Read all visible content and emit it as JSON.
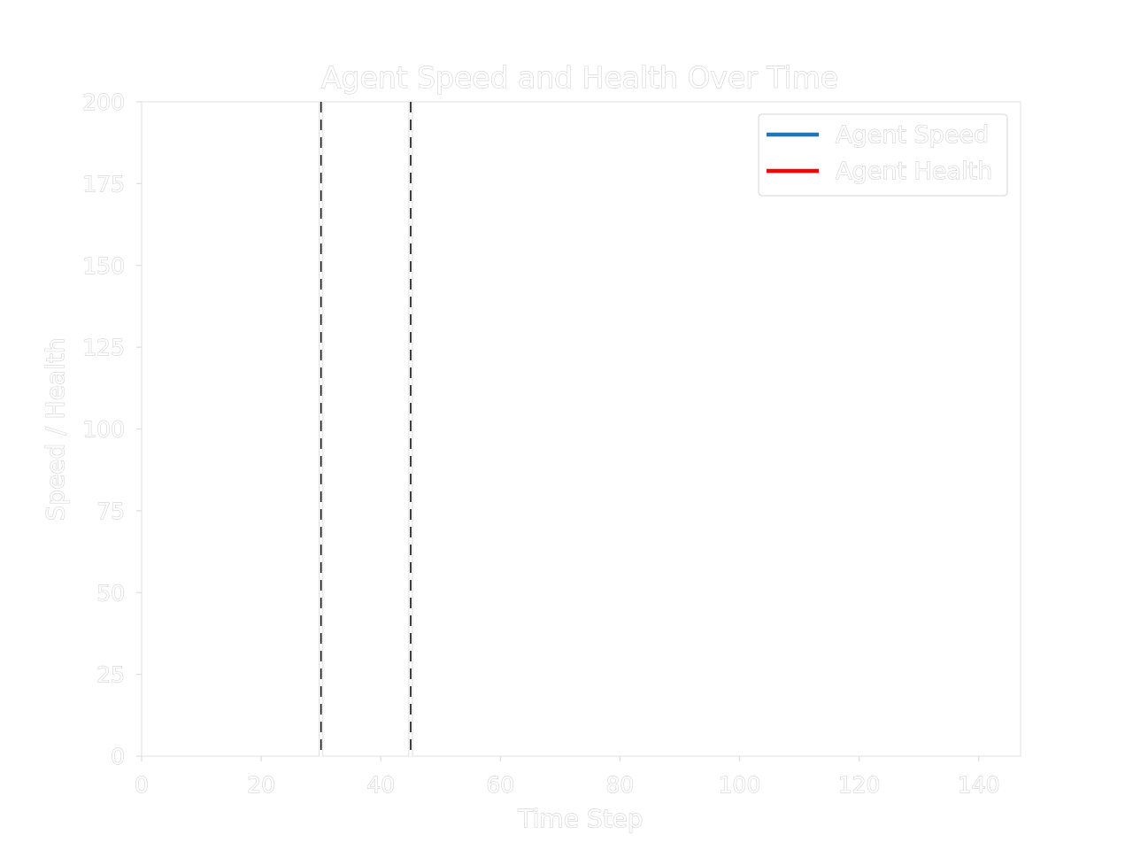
{
  "chart_data": {
    "type": "line",
    "title": "Agent Speed and Health Over Time",
    "xlabel": "Time Step",
    "ylabel": "Speed / Health",
    "xlim": [
      0,
      147
    ],
    "ylim": [
      0,
      200
    ],
    "xticks": [
      0,
      20,
      40,
      60,
      80,
      100,
      120,
      140
    ],
    "yticks": [
      0,
      25,
      50,
      75,
      100,
      125,
      150,
      175,
      200
    ],
    "grid": false,
    "legend_position": "top-right",
    "series": [
      {
        "name": "Agent Speed",
        "color": "#1f77b4",
        "x": [],
        "y": []
      },
      {
        "name": "Agent Health",
        "color": "#ff0000",
        "x": [],
        "y": []
      }
    ],
    "vertical_lines": [
      {
        "x": 30,
        "style": "dashed",
        "color": "#000000"
      },
      {
        "x": 45,
        "style": "dashed",
        "color": "#000000"
      }
    ]
  }
}
